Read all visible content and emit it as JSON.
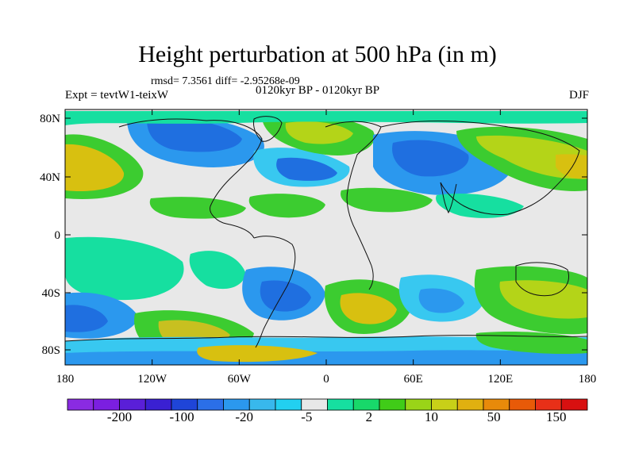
{
  "title": "Height perturbation at 500 hPa (in m)",
  "stats": "rmsd= 7.3561 diff= -2.95268e-09",
  "period": "0120kyr BP - 0120kyr BP",
  "experiment": "Expt = tevtW1-teixW",
  "season": "DJF",
  "lat_ticks": [
    "80N",
    "40N",
    "0",
    "40S",
    "80S"
  ],
  "lon_ticks": [
    "180",
    "120W",
    "60W",
    "0",
    "60E",
    "120E",
    "180"
  ],
  "colorbar": {
    "colors": [
      "#8a2be2",
      "#7b1fe0",
      "#5a1fd8",
      "#3a20d2",
      "#1f45d8",
      "#2b6fe8",
      "#2b98ee",
      "#38b8ec",
      "#22d0f0",
      "#e8e8e8",
      "#16dfa0",
      "#18d86a",
      "#40cc18",
      "#9ad418",
      "#c8d018",
      "#e0b010",
      "#e88a0a",
      "#e85a08",
      "#e83018",
      "#d81010"
    ],
    "labels": [
      "-200",
      "-100",
      "-20",
      "-5",
      "2",
      "10",
      "50",
      "150"
    ]
  },
  "palette": {
    "neutral": "#e8e8e8",
    "blue_strong": "#1f6fe0",
    "blue": "#2b98ee",
    "cyan": "#38c8f0",
    "teal": "#16dfa0",
    "green": "#3ccc30",
    "yellowgreen": "#b4d418",
    "yellow": "#d8c010",
    "orange": "#e0a010"
  }
}
